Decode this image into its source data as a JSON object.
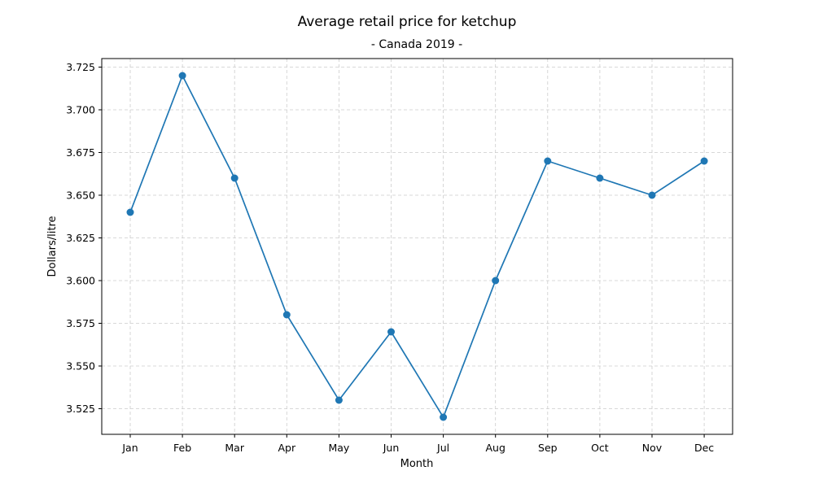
{
  "chart_data": {
    "type": "line",
    "title": "Average retail price for ketchup",
    "subtitle": "- Canada 2019 -",
    "xlabel": "Month",
    "ylabel": "Dollars/litre",
    "categories": [
      "Jan",
      "Feb",
      "Mar",
      "Apr",
      "May",
      "Jun",
      "Jul",
      "Aug",
      "Sep",
      "Oct",
      "Nov",
      "Dec"
    ],
    "series": [
      {
        "values": [
          3.64,
          3.72,
          3.66,
          3.58,
          3.53,
          3.57,
          3.52,
          3.6,
          3.67,
          3.66,
          3.65,
          3.67
        ]
      }
    ],
    "ylim": [
      3.51,
      3.73
    ],
    "yticks": [
      "3.525",
      "3.550",
      "3.575",
      "3.600",
      "3.625",
      "3.650",
      "3.675",
      "3.700",
      "3.725"
    ],
    "grid": true,
    "color": "#1f77b4",
    "marker": "circle"
  }
}
